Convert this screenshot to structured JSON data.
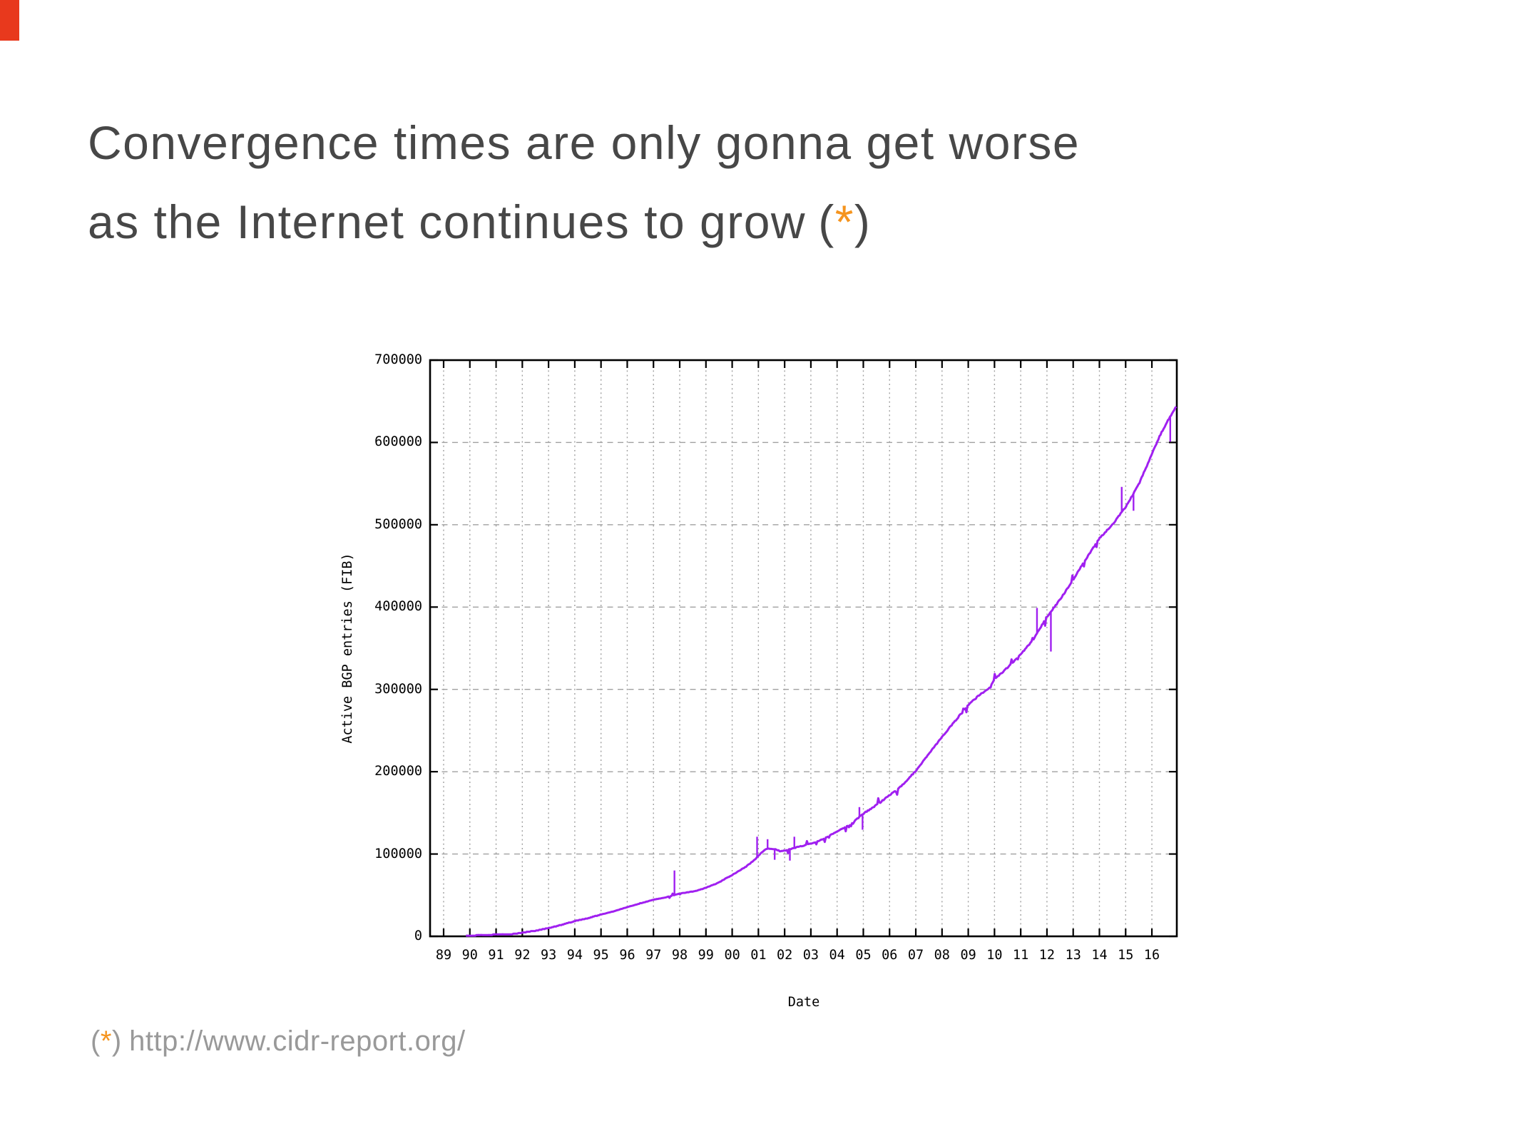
{
  "slide": {
    "title_line1": "Convergence times are only gonna get worse",
    "title_line2_text": "as the Internet continues to grow",
    "paren_open": "(",
    "asterisk": "*",
    "paren_close": ")",
    "footnote_paren_open": "(",
    "footnote_asterisk": "*",
    "footnote_paren_close": ")",
    "footnote_url": "http://www.cidr-report.org/",
    "colors": {
      "title_text": "#474747",
      "footnote_text": "#999999",
      "accent_orange": "#F5941E",
      "marker_red": "#E8391D"
    }
  },
  "chart_data": {
    "type": "line",
    "title": "",
    "xlabel": "Date",
    "ylabel": "Active BGP entries (FIB)",
    "x_tick_labels": [
      "89",
      "90",
      "91",
      "92",
      "93",
      "94",
      "95",
      "96",
      "97",
      "98",
      "99",
      "00",
      "01",
      "02",
      "03",
      "04",
      "05",
      "06",
      "07",
      "08",
      "09",
      "10",
      "11",
      "12",
      "13",
      "14",
      "15",
      "16"
    ],
    "x_tick_years": [
      1989,
      1990,
      1991,
      1992,
      1993,
      1994,
      1995,
      1996,
      1997,
      1998,
      1999,
      2000,
      2001,
      2002,
      2003,
      2004,
      2005,
      2006,
      2007,
      2008,
      2009,
      2010,
      2011,
      2012,
      2013,
      2014,
      2015,
      2016
    ],
    "x_range": [
      1988.48,
      2016.95
    ],
    "ylim": [
      0,
      700000
    ],
    "y_tick_step": 100000,
    "y_tick_labels": [
      "0",
      "100000",
      "200000",
      "300000",
      "400000",
      "500000",
      "600000",
      "700000"
    ],
    "y_tick_values": [
      0,
      100000,
      200000,
      300000,
      400000,
      500000,
      600000,
      700000
    ],
    "grid": true,
    "legend": "none",
    "line_color": "#A020F0",
    "grid_color": "#A0A0A0",
    "axis_color": "#000000",
    "series": [
      {
        "name": "Active BGP entries (FIB)",
        "points": [
          [
            1989.85,
            800
          ],
          [
            1990.5,
            1500
          ],
          [
            1991.0,
            2200
          ],
          [
            1991.6,
            2600
          ],
          [
            1992.0,
            4500
          ],
          [
            1992.5,
            6800
          ],
          [
            1993.0,
            10000
          ],
          [
            1993.5,
            14000
          ],
          [
            1994.0,
            18500
          ],
          [
            1994.5,
            22000
          ],
          [
            1995.0,
            26500
          ],
          [
            1995.5,
            30500
          ],
          [
            1996.0,
            35500
          ],
          [
            1996.5,
            40000
          ],
          [
            1997.0,
            44500
          ],
          [
            1997.5,
            47500
          ],
          [
            1998.0,
            52000
          ],
          [
            1998.6,
            55000
          ],
          [
            1999.0,
            59000
          ],
          [
            1999.5,
            65500
          ],
          [
            2000.0,
            74500
          ],
          [
            2000.5,
            84000
          ],
          [
            2000.9,
            94000
          ],
          [
            2001.1,
            101500
          ],
          [
            2001.35,
            107000
          ],
          [
            2001.6,
            106000
          ],
          [
            2001.85,
            103500
          ],
          [
            2002.1,
            105000
          ],
          [
            2002.5,
            108500
          ],
          [
            2003.0,
            112500
          ],
          [
            2003.5,
            118500
          ],
          [
            2004.0,
            127500
          ],
          [
            2004.5,
            135500
          ],
          [
            2005.0,
            149000
          ],
          [
            2005.5,
            159500
          ],
          [
            2006.0,
            171500
          ],
          [
            2006.5,
            184000
          ],
          [
            2007.0,
            201000
          ],
          [
            2007.5,
            221500
          ],
          [
            2008.0,
            242500
          ],
          [
            2008.5,
            261500
          ],
          [
            2009.0,
            281000
          ],
          [
            2009.4,
            292500
          ],
          [
            2009.8,
            301000
          ],
          [
            2010.0,
            312000
          ],
          [
            2010.5,
            326500
          ],
          [
            2011.0,
            342500
          ],
          [
            2011.5,
            361500
          ],
          [
            2012.0,
            388500
          ],
          [
            2012.3,
            400500
          ],
          [
            2012.6,
            414000
          ],
          [
            2013.0,
            433500
          ],
          [
            2013.5,
            459000
          ],
          [
            2014.0,
            483500
          ],
          [
            2014.5,
            500500
          ],
          [
            2015.0,
            521500
          ],
          [
            2015.5,
            549000
          ],
          [
            2016.0,
            586000
          ],
          [
            2016.3,
            608000
          ],
          [
            2016.6,
            626000
          ],
          [
            2016.93,
            644000
          ]
        ]
      }
    ],
    "spikes": [
      [
        1997.8,
        80000
      ],
      [
        2000.95,
        121000
      ],
      [
        2001.35,
        118000
      ],
      [
        2001.62,
        93000
      ],
      [
        2002.2,
        92000
      ],
      [
        2002.37,
        121000
      ],
      [
        2004.85,
        157000
      ],
      [
        2004.97,
        129500
      ],
      [
        2011.62,
        399000
      ],
      [
        2012.15,
        346000
      ],
      [
        2014.85,
        546000
      ],
      [
        2015.3,
        517000
      ],
      [
        2016.7,
        601000
      ]
    ]
  }
}
